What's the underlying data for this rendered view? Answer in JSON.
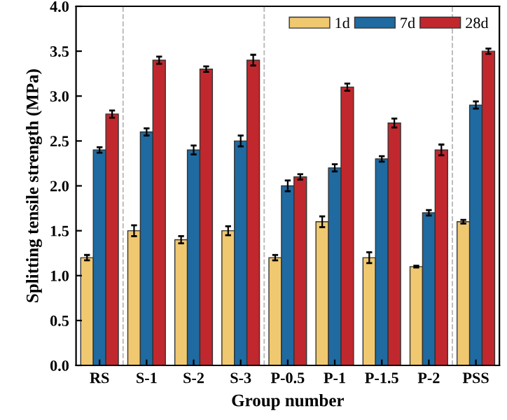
{
  "chart_data": {
    "type": "bar",
    "xlabel": "Group number",
    "ylabel": "Splitting tensile strength (MPa)",
    "categories": [
      "RS",
      "S-1",
      "S-2",
      "S-3",
      "P-0.5",
      "P-1",
      "P-1.5",
      "P-2",
      "PSS"
    ],
    "series": [
      {
        "name": "1d",
        "color": "#f0c870",
        "values": [
          1.2,
          1.5,
          1.4,
          1.5,
          1.2,
          1.6,
          1.2,
          1.1,
          1.6
        ],
        "errors": [
          0.03,
          0.06,
          0.04,
          0.05,
          0.03,
          0.06,
          0.06,
          0.01,
          0.02
        ]
      },
      {
        "name": "7d",
        "color": "#1f6aa0",
        "values": [
          2.4,
          2.6,
          2.4,
          2.5,
          2.0,
          2.2,
          2.3,
          1.7,
          2.9
        ],
        "errors": [
          0.03,
          0.04,
          0.05,
          0.06,
          0.06,
          0.04,
          0.03,
          0.03,
          0.04
        ]
      },
      {
        "name": "28d",
        "color": "#c0282e",
        "values": [
          2.8,
          3.4,
          3.3,
          3.4,
          2.1,
          3.1,
          2.7,
          2.4,
          3.5
        ],
        "errors": [
          0.04,
          0.04,
          0.03,
          0.06,
          0.03,
          0.04,
          0.05,
          0.06,
          0.03
        ]
      }
    ],
    "ylim": [
      0,
      4
    ],
    "yticks": [
      {
        "value": 0,
        "label": "0.0"
      },
      {
        "value": 0.5,
        "label": "0.5"
      },
      {
        "value": 1,
        "label": "1.0"
      },
      {
        "value": 1.5,
        "label": "1.5"
      },
      {
        "value": 2,
        "label": "2.0"
      },
      {
        "value": 2.5,
        "label": "2.5"
      },
      {
        "value": 3,
        "label": "3.0"
      },
      {
        "value": 3.5,
        "label": "3.5"
      },
      {
        "value": 4,
        "label": "4.0"
      }
    ],
    "legend": "top right",
    "grid": false
  }
}
